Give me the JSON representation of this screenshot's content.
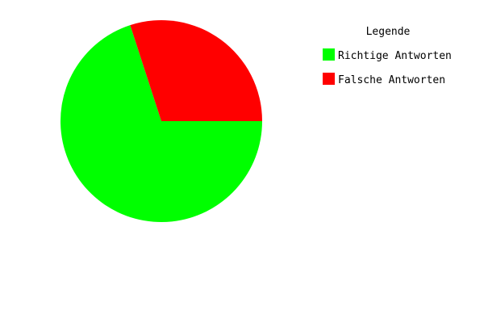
{
  "chart_data": {
    "type": "pie",
    "title": "",
    "legend": {
      "title": "Legende",
      "placement": "top-right"
    },
    "slices": [
      {
        "name": "Richtige Antworten",
        "value": 70,
        "color": "#00ff00"
      },
      {
        "name": "Falsche Antworten",
        "value": 30,
        "color": "#ff0000"
      }
    ]
  }
}
